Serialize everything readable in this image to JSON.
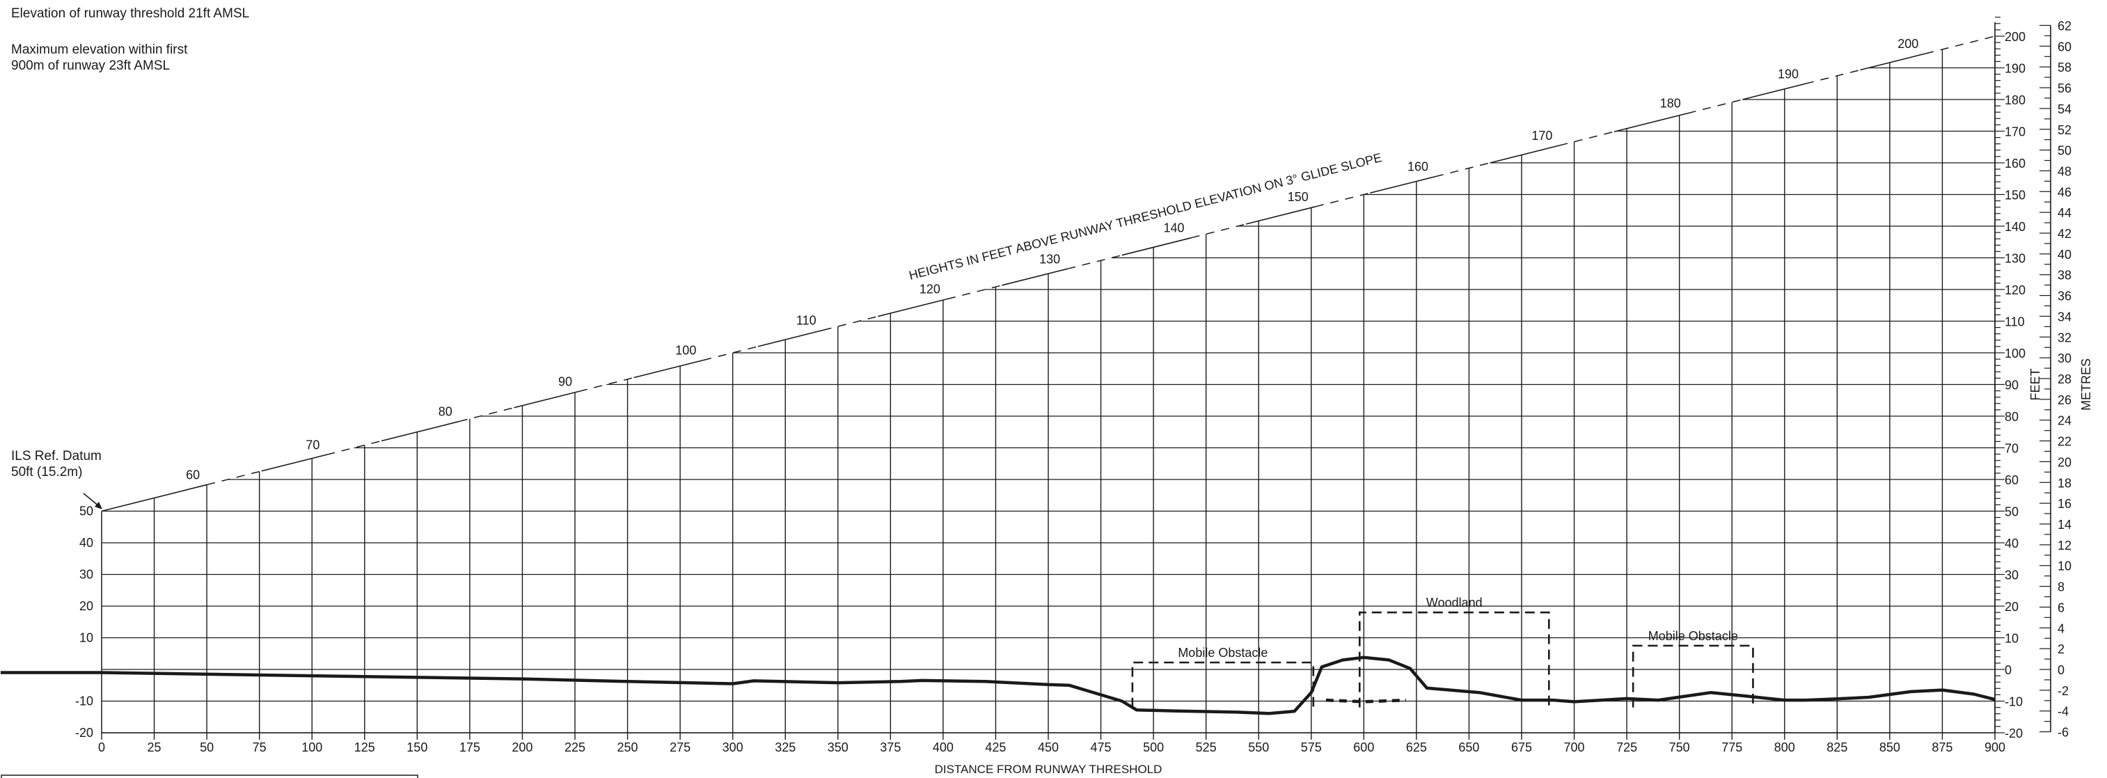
{
  "notes": {
    "threshold_elevation": "Elevation of runway threshold 21ft AMSL",
    "max_elevation_line1": "Maximum elevation within first",
    "max_elevation_line2": "900m of runway 23ft AMSL",
    "ils_datum_line1": "ILS Ref. Datum",
    "ils_datum_line2": "50ft (15.2m)"
  },
  "chart_data": {
    "type": "line",
    "title": "",
    "xlabel": "DISTANCE FROM RUNWAY THRESHOLD",
    "ylabel_feet": "FEET",
    "ylabel_metres": "METRES",
    "glide_slope_label": "HEIGHTS IN FEET ABOVE RUNWAY THRESHOLD ELEVATION ON 3° GLIDE SLOPE",
    "xlim": [
      0,
      900
    ],
    "ylim_feet": [
      -20,
      200
    ],
    "ylim_metres": [
      -6,
      62
    ],
    "x_ticks": [
      0,
      25,
      50,
      75,
      100,
      125,
      150,
      175,
      200,
      225,
      250,
      275,
      300,
      325,
      350,
      375,
      400,
      425,
      450,
      475,
      500,
      525,
      550,
      575,
      600,
      625,
      650,
      675,
      700,
      725,
      750,
      775,
      800,
      825,
      850,
      875,
      900
    ],
    "left_y_ticks": [
      -20,
      -10,
      10,
      20,
      30,
      40,
      50
    ],
    "right_y_ticks_feet": [
      -20,
      -10,
      0,
      10,
      20,
      30,
      40,
      50,
      60,
      70,
      80,
      90,
      100,
      110,
      120,
      130,
      140,
      150,
      160,
      170,
      180,
      190,
      200
    ],
    "right_y_ticks_metres": [
      -6,
      -4,
      -2,
      0,
      2,
      4,
      6,
      8,
      10,
      12,
      14,
      16,
      18,
      20,
      22,
      24,
      26,
      28,
      30,
      32,
      34,
      36,
      38,
      40,
      42,
      44,
      46,
      48,
      50,
      52,
      54,
      56,
      58,
      60,
      62
    ],
    "glide_slope_markers": [
      {
        "x": 50,
        "label": "60"
      },
      {
        "x": 107,
        "label": "70"
      },
      {
        "x": 170,
        "label": "80"
      },
      {
        "x": 227,
        "label": "90"
      },
      {
        "x": 286,
        "label": "100"
      },
      {
        "x": 343,
        "label": "110"
      },
      {
        "x": 402,
        "label": "120"
      },
      {
        "x": 459,
        "label": "130"
      },
      {
        "x": 518,
        "label": "140"
      },
      {
        "x": 577,
        "label": "150"
      },
      {
        "x": 634,
        "label": "160"
      },
      {
        "x": 693,
        "label": "170"
      },
      {
        "x": 754,
        "label": "180"
      },
      {
        "x": 810,
        "label": "190"
      },
      {
        "x": 867,
        "label": "200"
      }
    ],
    "terrain_profile": [
      [
        -48,
        -1
      ],
      [
        0,
        -1
      ],
      [
        100,
        -2
      ],
      [
        200,
        -3
      ],
      [
        250,
        -3.8
      ],
      [
        300,
        -4.5
      ],
      [
        310,
        -3.6
      ],
      [
        350,
        -4.2
      ],
      [
        380,
        -3.8
      ],
      [
        390,
        -3.5
      ],
      [
        420,
        -3.8
      ],
      [
        450,
        -4.8
      ],
      [
        460,
        -5
      ],
      [
        470,
        -7
      ],
      [
        485,
        -10
      ],
      [
        492,
        -12.8
      ],
      [
        510,
        -13.1
      ],
      [
        540,
        -13.5
      ],
      [
        555,
        -13.9
      ],
      [
        567,
        -13.2
      ],
      [
        575,
        -7.3
      ],
      [
        580,
        0.8
      ],
      [
        590,
        3
      ],
      [
        600,
        3.8
      ],
      [
        612,
        3
      ],
      [
        622,
        0.3
      ],
      [
        630,
        -5.9
      ],
      [
        655,
        -7.3
      ],
      [
        675,
        -9.7
      ],
      [
        690,
        -9.7
      ],
      [
        700,
        -10.2
      ],
      [
        725,
        -9.2
      ],
      [
        740,
        -9.7
      ],
      [
        765,
        -7.3
      ],
      [
        780,
        -8.3
      ],
      [
        800,
        -9.7
      ],
      [
        810,
        -9.7
      ],
      [
        825,
        -9.3
      ],
      [
        840,
        -8.8
      ],
      [
        860,
        -7
      ],
      [
        875,
        -6.5
      ],
      [
        890,
        -7.8
      ],
      [
        900,
        -9.5
      ]
    ],
    "mobile_obstacle_dashed": [
      [
        582,
        -9.7
      ],
      [
        600,
        -10.2
      ],
      [
        620,
        -9.7
      ]
    ],
    "obstacles": [
      {
        "label": "Mobile Obstacle",
        "x": [
          490,
          576
        ],
        "top": 2.2
      },
      {
        "label": "Woodland",
        "x": [
          598,
          688
        ],
        "top": 18
      },
      {
        "label": "Mobile Obstacle",
        "x": [
          728,
          785
        ],
        "top": 7.5
      }
    ]
  }
}
